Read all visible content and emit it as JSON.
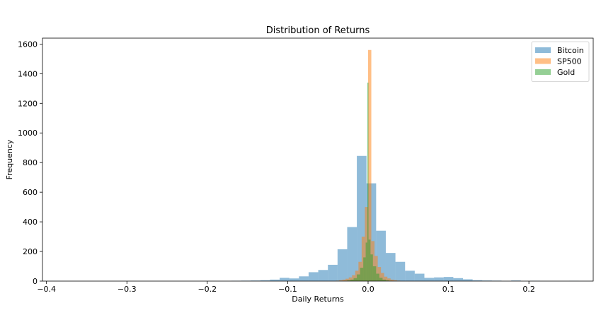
{
  "chart_data": {
    "type": "histogram",
    "title": "Distribution of Returns",
    "xlabel": "Daily Returns",
    "ylabel": "Frequency",
    "xlim": [
      -0.405,
      0.28
    ],
    "ylim": [
      0,
      1640
    ],
    "xticks": [
      -0.4,
      -0.3,
      -0.2,
      -0.1,
      0.0,
      0.1,
      0.2
    ],
    "xtick_labels": [
      "−0.4",
      "−0.3",
      "−0.2",
      "−0.1",
      "0.0",
      "0.1",
      "0.2"
    ],
    "yticks": [
      0,
      200,
      400,
      600,
      800,
      1000,
      1200,
      1400,
      1600
    ],
    "yticks_labels": [
      "0",
      "200",
      "400",
      "600",
      "800",
      "1000",
      "1200",
      "1400",
      "1600"
    ],
    "grid": false,
    "legend_position": "top-right",
    "series": [
      {
        "name": "Bitcoin",
        "color": "#1f77b4",
        "alpha": 0.5,
        "bins": [
          {
            "x0": -0.395,
            "x1": -0.383,
            "count": 1
          },
          {
            "x0": -0.17,
            "x1": -0.158,
            "count": 2
          },
          {
            "x0": -0.158,
            "x1": -0.146,
            "count": 3
          },
          {
            "x0": -0.146,
            "x1": -0.134,
            "count": 4
          },
          {
            "x0": -0.134,
            "x1": -0.122,
            "count": 6
          },
          {
            "x0": -0.122,
            "x1": -0.11,
            "count": 10
          },
          {
            "x0": -0.11,
            "x1": -0.098,
            "count": 22
          },
          {
            "x0": -0.098,
            "x1": -0.086,
            "count": 18
          },
          {
            "x0": -0.086,
            "x1": -0.074,
            "count": 32
          },
          {
            "x0": -0.074,
            "x1": -0.062,
            "count": 60
          },
          {
            "x0": -0.062,
            "x1": -0.05,
            "count": 75
          },
          {
            "x0": -0.05,
            "x1": -0.038,
            "count": 110
          },
          {
            "x0": -0.038,
            "x1": -0.026,
            "count": 215
          },
          {
            "x0": -0.026,
            "x1": -0.014,
            "count": 365
          },
          {
            "x0": -0.014,
            "x1": -0.002,
            "count": 845
          },
          {
            "x0": -0.002,
            "x1": 0.01,
            "count": 660
          },
          {
            "x0": 0.01,
            "x1": 0.022,
            "count": 340
          },
          {
            "x0": 0.022,
            "x1": 0.034,
            "count": 190
          },
          {
            "x0": 0.034,
            "x1": 0.046,
            "count": 130
          },
          {
            "x0": 0.046,
            "x1": 0.058,
            "count": 70
          },
          {
            "x0": 0.058,
            "x1": 0.07,
            "count": 50
          },
          {
            "x0": 0.07,
            "x1": 0.082,
            "count": 22
          },
          {
            "x0": 0.082,
            "x1": 0.094,
            "count": 25
          },
          {
            "x0": 0.094,
            "x1": 0.106,
            "count": 28
          },
          {
            "x0": 0.106,
            "x1": 0.118,
            "count": 20
          },
          {
            "x0": 0.118,
            "x1": 0.13,
            "count": 12
          },
          {
            "x0": 0.13,
            "x1": 0.142,
            "count": 6
          },
          {
            "x0": 0.142,
            "x1": 0.154,
            "count": 4
          },
          {
            "x0": 0.154,
            "x1": 0.166,
            "count": 3
          },
          {
            "x0": 0.178,
            "x1": 0.19,
            "count": 4
          },
          {
            "x0": 0.202,
            "x1": 0.214,
            "count": 2
          },
          {
            "x0": 0.25,
            "x1": 0.262,
            "count": 1
          }
        ]
      },
      {
        "name": "SP500",
        "color": "#ff7f0e",
        "alpha": 0.5,
        "bins": [
          {
            "x0": -0.04,
            "x1": -0.036,
            "count": 3
          },
          {
            "x0": -0.036,
            "x1": -0.032,
            "count": 6
          },
          {
            "x0": -0.032,
            "x1": -0.028,
            "count": 10
          },
          {
            "x0": -0.028,
            "x1": -0.024,
            "count": 16
          },
          {
            "x0": -0.024,
            "x1": -0.02,
            "count": 25
          },
          {
            "x0": -0.02,
            "x1": -0.016,
            "count": 40
          },
          {
            "x0": -0.016,
            "x1": -0.012,
            "count": 70
          },
          {
            "x0": -0.012,
            "x1": -0.008,
            "count": 130
          },
          {
            "x0": -0.008,
            "x1": -0.004,
            "count": 300
          },
          {
            "x0": -0.004,
            "x1": 0.0,
            "count": 500
          },
          {
            "x0": 0.0,
            "x1": 0.004,
            "count": 1560
          },
          {
            "x0": 0.004,
            "x1": 0.008,
            "count": 270
          },
          {
            "x0": 0.008,
            "x1": 0.012,
            "count": 170
          },
          {
            "x0": 0.012,
            "x1": 0.016,
            "count": 95
          },
          {
            "x0": 0.016,
            "x1": 0.02,
            "count": 55
          },
          {
            "x0": 0.02,
            "x1": 0.024,
            "count": 30
          },
          {
            "x0": 0.024,
            "x1": 0.028,
            "count": 18
          },
          {
            "x0": 0.028,
            "x1": 0.032,
            "count": 10
          },
          {
            "x0": 0.032,
            "x1": 0.036,
            "count": 6
          },
          {
            "x0": 0.036,
            "x1": 0.04,
            "count": 3
          }
        ]
      },
      {
        "name": "Gold",
        "color": "#2ca02c",
        "alpha": 0.5,
        "bins": [
          {
            "x0": -0.03,
            "x1": -0.026,
            "count": 2
          },
          {
            "x0": -0.026,
            "x1": -0.022,
            "count": 5
          },
          {
            "x0": -0.022,
            "x1": -0.018,
            "count": 10
          },
          {
            "x0": -0.018,
            "x1": -0.014,
            "count": 20
          },
          {
            "x0": -0.014,
            "x1": -0.01,
            "count": 45
          },
          {
            "x0": -0.01,
            "x1": -0.006,
            "count": 90
          },
          {
            "x0": -0.006,
            "x1": -0.003,
            "count": 160
          },
          {
            "x0": -0.003,
            "x1": -0.001,
            "count": 260
          },
          {
            "x0": -0.001,
            "x1": 0.0005,
            "count": 1340
          },
          {
            "x0": 0.0005,
            "x1": 0.003,
            "count": 280
          },
          {
            "x0": 0.003,
            "x1": 0.006,
            "count": 180
          },
          {
            "x0": 0.006,
            "x1": 0.01,
            "count": 100
          },
          {
            "x0": 0.01,
            "x1": 0.014,
            "count": 50
          },
          {
            "x0": 0.014,
            "x1": 0.018,
            "count": 22
          },
          {
            "x0": 0.018,
            "x1": 0.022,
            "count": 10
          },
          {
            "x0": 0.022,
            "x1": 0.026,
            "count": 5
          },
          {
            "x0": 0.026,
            "x1": 0.03,
            "count": 2
          }
        ]
      }
    ]
  }
}
